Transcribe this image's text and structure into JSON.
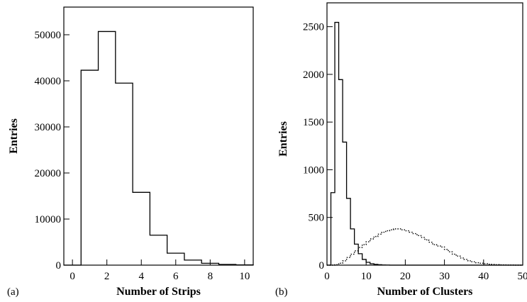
{
  "chart_data": [
    {
      "type": "histogram",
      "panel_label": "(a)",
      "xlabel": "Number of Strips",
      "ylabel": "Entries",
      "xlim": [
        -0.5,
        10.5
      ],
      "ylim": [
        0,
        56000
      ],
      "xticks": [
        0,
        2,
        4,
        6,
        8,
        10
      ],
      "yticks": [
        0,
        10000,
        20000,
        30000,
        40000,
        50000
      ],
      "grid": false,
      "series": [
        {
          "style": "solid",
          "bin_width": 1,
          "bin_centers": [
            0,
            1,
            2,
            3,
            4,
            5,
            6,
            7,
            8,
            9,
            10
          ],
          "values": [
            0,
            42300,
            50700,
            39500,
            15800,
            6500,
            2600,
            1100,
            400,
            150,
            50
          ]
        }
      ]
    },
    {
      "type": "histogram",
      "panel_label": "(b)",
      "xlabel": "Number of Clusters",
      "ylabel": "Entries",
      "xlim": [
        0,
        50
      ],
      "ylim": [
        0,
        2750
      ],
      "xticks": [
        0,
        10,
        20,
        30,
        40,
        50
      ],
      "yticks": [
        0,
        500,
        1000,
        1500,
        2000,
        2500
      ],
      "grid": false,
      "series": [
        {
          "style": "solid",
          "bin_width": 1,
          "bin_edges_start": 0,
          "values": [
            0,
            760,
            2545,
            1945,
            1290,
            700,
            380,
            220,
            120,
            60,
            30,
            15,
            8,
            4,
            2,
            1,
            0,
            0,
            0,
            0,
            0,
            0,
            0,
            0,
            0,
            0,
            0,
            0,
            0,
            0,
            0,
            0,
            0,
            0,
            0,
            0,
            0,
            0,
            0,
            0,
            0,
            0,
            0,
            0,
            0,
            0,
            0,
            0,
            0,
            0
          ]
        },
        {
          "style": "dotted",
          "bin_width": 1,
          "bin_edges_start": 0,
          "values": [
            0,
            0,
            5,
            20,
            45,
            80,
            115,
            150,
            185,
            215,
            245,
            275,
            300,
            325,
            345,
            360,
            370,
            380,
            380,
            370,
            360,
            345,
            330,
            310,
            290,
            265,
            240,
            215,
            200,
            190,
            165,
            140,
            115,
            95,
            75,
            60,
            45,
            35,
            25,
            20,
            15,
            10,
            8,
            5,
            3,
            2,
            1,
            1,
            0,
            0
          ]
        }
      ]
    }
  ]
}
